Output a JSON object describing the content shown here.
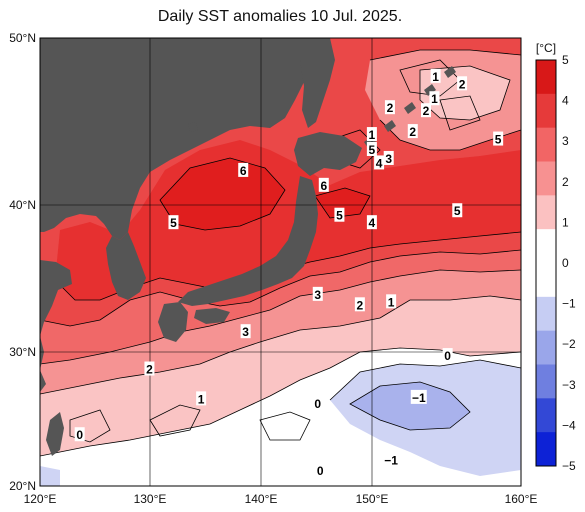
{
  "title": "Daily SST anomalies 10 Jul. 2025.",
  "colorbar": {
    "unit": "[°C]",
    "ticks": [
      "5",
      "4",
      "3",
      "2",
      "1",
      "0",
      "−1",
      "−2",
      "−3",
      "−4",
      "−5"
    ],
    "colors": [
      "#d81818",
      "#e63a3a",
      "#f26565",
      "#f79191",
      "#fbc1c1",
      "#ffffff",
      "#ffffff",
      "#c6cdf3",
      "#9aa6ea",
      "#6f7fe0",
      "#3348d6",
      "#0d22d6"
    ]
  },
  "axes": {
    "lon_labels": [
      "120°E",
      "130°E",
      "140°E",
      "150°E",
      "160°E"
    ],
    "lat_labels": [
      "50°N",
      "40°N",
      "30°N",
      "20°N"
    ]
  },
  "colors": {
    "land": "#555555",
    "anom6": "#e01e1e",
    "anom5": "#e63030",
    "anom4": "#ea4848",
    "anom3": "#f06868",
    "anom2": "#f59393",
    "anom1": "#fac4c4",
    "anom0": "#ffffff",
    "neg1": "#cfd4f4",
    "neg2": "#a9b2ec"
  },
  "anomaly_labels": [
    {
      "text": "1",
      "lon": 152.9,
      "lat": 47.4
    },
    {
      "text": "2",
      "lon": 155.1,
      "lat": 46.9
    },
    {
      "text": "1",
      "lon": 152.8,
      "lat": 45.9
    },
    {
      "text": "2",
      "lon": 149.1,
      "lat": 45.3
    },
    {
      "text": "2",
      "lon": 152.1,
      "lat": 45.1
    },
    {
      "text": "2",
      "lon": 151.0,
      "lat": 43.7
    },
    {
      "text": "1",
      "lon": 147.6,
      "lat": 43.5
    },
    {
      "text": "5",
      "lon": 158.1,
      "lat": 43.2
    },
    {
      "text": "5",
      "lon": 147.6,
      "lat": 42.5
    },
    {
      "text": "3",
      "lon": 149.0,
      "lat": 41.9
    },
    {
      "text": "4",
      "lon": 148.2,
      "lat": 41.6
    },
    {
      "text": "6",
      "lon": 136.9,
      "lat": 41.1
    },
    {
      "text": "6",
      "lon": 143.6,
      "lat": 40.1
    },
    {
      "text": "5",
      "lon": 144.9,
      "lat": 38.1
    },
    {
      "text": "5",
      "lon": 131.1,
      "lat": 37.6
    },
    {
      "text": "4",
      "lon": 147.6,
      "lat": 37.6
    },
    {
      "text": "5",
      "lon": 154.7,
      "lat": 38.4
    },
    {
      "text": "3",
      "lon": 143.1,
      "lat": 32.8
    },
    {
      "text": "2",
      "lon": 146.6,
      "lat": 32.1
    },
    {
      "text": "1",
      "lon": 149.2,
      "lat": 32.3
    },
    {
      "text": "3",
      "lon": 137.1,
      "lat": 30.3
    },
    {
      "text": "0",
      "lon": 153.9,
      "lat": 28.7
    },
    {
      "text": "2",
      "lon": 129.1,
      "lat": 27.8
    },
    {
      "text": "−1",
      "lon": 151.5,
      "lat": 25.9
    },
    {
      "text": "1",
      "lon": 133.4,
      "lat": 25.8
    },
    {
      "text": "0",
      "lon": 143.1,
      "lat": 25.5
    },
    {
      "text": "0",
      "lon": 123.3,
      "lat": 23.4
    },
    {
      "text": "−1",
      "lon": 149.2,
      "lat": 21.7
    },
    {
      "text": "0",
      "lon": 143.3,
      "lat": 21.0
    }
  ]
}
